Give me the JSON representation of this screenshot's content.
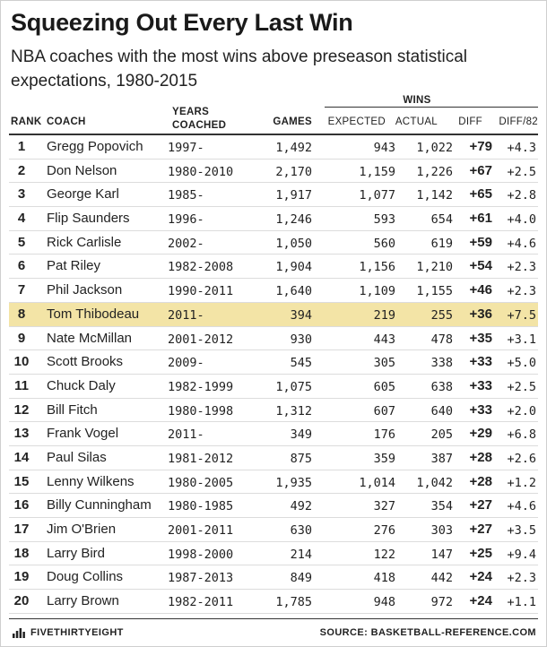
{
  "title": "Squeezing Out Every Last Win",
  "subtitle": "NBA coaches with the most wins above preseason statistical expectations, 1980-2015",
  "chart_data": {
    "type": "table",
    "group_header": "WINS",
    "columns": {
      "rank": "RANK",
      "coach": "COACH",
      "years_line1": "YEARS",
      "years_line2": "COACHED",
      "games": "GAMES",
      "expected": "EXPECTED",
      "actual": "ACTUAL",
      "diff": "DIFF",
      "diff82": "DIFF/82"
    },
    "rows": [
      {
        "rank": "1",
        "coach": "Gregg Popovich",
        "years": "1997-",
        "games": "1,492",
        "expected": "943",
        "actual": "1,022",
        "diff": "+79",
        "diff82": "+4.3"
      },
      {
        "rank": "2",
        "coach": "Don Nelson",
        "years": "1980-2010",
        "games": "2,170",
        "expected": "1,159",
        "actual": "1,226",
        "diff": "+67",
        "diff82": "+2.5"
      },
      {
        "rank": "3",
        "coach": "George Karl",
        "years": "1985-",
        "games": "1,917",
        "expected": "1,077",
        "actual": "1,142",
        "diff": "+65",
        "diff82": "+2.8"
      },
      {
        "rank": "4",
        "coach": "Flip Saunders",
        "years": "1996-",
        "games": "1,246",
        "expected": "593",
        "actual": "654",
        "diff": "+61",
        "diff82": "+4.0"
      },
      {
        "rank": "5",
        "coach": "Rick Carlisle",
        "years": "2002-",
        "games": "1,050",
        "expected": "560",
        "actual": "619",
        "diff": "+59",
        "diff82": "+4.6"
      },
      {
        "rank": "6",
        "coach": "Pat Riley",
        "years": "1982-2008",
        "games": "1,904",
        "expected": "1,156",
        "actual": "1,210",
        "diff": "+54",
        "diff82": "+2.3"
      },
      {
        "rank": "7",
        "coach": "Phil Jackson",
        "years": "1990-2011",
        "games": "1,640",
        "expected": "1,109",
        "actual": "1,155",
        "diff": "+46",
        "diff82": "+2.3"
      },
      {
        "rank": "8",
        "coach": "Tom Thibodeau",
        "years": "2011-",
        "games": "394",
        "expected": "219",
        "actual": "255",
        "diff": "+36",
        "diff82": "+7.5",
        "highlight": true
      },
      {
        "rank": "9",
        "coach": "Nate McMillan",
        "years": "2001-2012",
        "games": "930",
        "expected": "443",
        "actual": "478",
        "diff": "+35",
        "diff82": "+3.1"
      },
      {
        "rank": "10",
        "coach": "Scott Brooks",
        "years": "2009-",
        "games": "545",
        "expected": "305",
        "actual": "338",
        "diff": "+33",
        "diff82": "+5.0"
      },
      {
        "rank": "11",
        "coach": "Chuck Daly",
        "years": "1982-1999",
        "games": "1,075",
        "expected": "605",
        "actual": "638",
        "diff": "+33",
        "diff82": "+2.5"
      },
      {
        "rank": "12",
        "coach": "Bill Fitch",
        "years": "1980-1998",
        "games": "1,312",
        "expected": "607",
        "actual": "640",
        "diff": "+33",
        "diff82": "+2.0"
      },
      {
        "rank": "13",
        "coach": "Frank Vogel",
        "years": "2011-",
        "games": "349",
        "expected": "176",
        "actual": "205",
        "diff": "+29",
        "diff82": "+6.8"
      },
      {
        "rank": "14",
        "coach": "Paul Silas",
        "years": "1981-2012",
        "games": "875",
        "expected": "359",
        "actual": "387",
        "diff": "+28",
        "diff82": "+2.6"
      },
      {
        "rank": "15",
        "coach": "Lenny Wilkens",
        "years": "1980-2005",
        "games": "1,935",
        "expected": "1,014",
        "actual": "1,042",
        "diff": "+28",
        "diff82": "+1.2"
      },
      {
        "rank": "16",
        "coach": "Billy Cunningham",
        "years": "1980-1985",
        "games": "492",
        "expected": "327",
        "actual": "354",
        "diff": "+27",
        "diff82": "+4.6"
      },
      {
        "rank": "17",
        "coach": "Jim O'Brien",
        "years": "2001-2011",
        "games": "630",
        "expected": "276",
        "actual": "303",
        "diff": "+27",
        "diff82": "+3.5"
      },
      {
        "rank": "18",
        "coach": "Larry Bird",
        "years": "1998-2000",
        "games": "214",
        "expected": "122",
        "actual": "147",
        "diff": "+25",
        "diff82": "+9.4"
      },
      {
        "rank": "19",
        "coach": "Doug Collins",
        "years": "1987-2013",
        "games": "849",
        "expected": "418",
        "actual": "442",
        "diff": "+24",
        "diff82": "+2.3"
      },
      {
        "rank": "20",
        "coach": "Larry Brown",
        "years": "1982-2011",
        "games": "1,785",
        "expected": "948",
        "actual": "972",
        "diff": "+24",
        "diff82": "+1.1"
      }
    ]
  },
  "footer": {
    "brand": "FIVETHIRTYEIGHT",
    "source": "SOURCE: BASKETBALL-REFERENCE.COM"
  },
  "colors": {
    "highlight_row": "#f3e4a6",
    "text": "#222222",
    "rule": "#333333"
  }
}
